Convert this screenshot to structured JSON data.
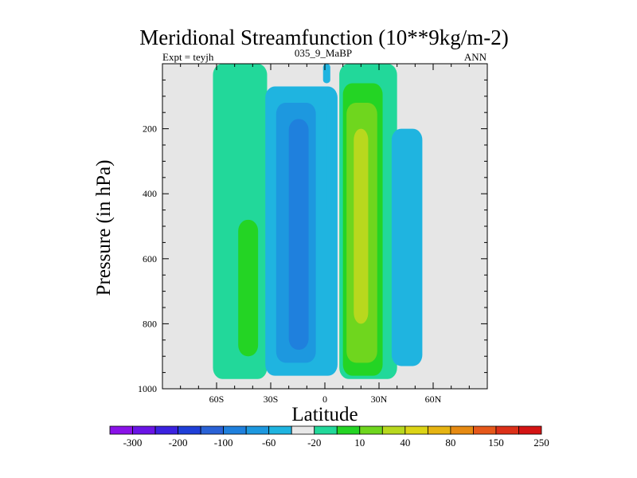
{
  "chart_data": {
    "type": "heatmap",
    "subtype": "filled-contour",
    "title": "Meridional Streamfunction (10**9kg/m-2)",
    "subtitle_left": "Expt = teyjh",
    "subtitle_center": "035_9_MaBP",
    "subtitle_right": "ANN",
    "xlabel": "Latitude",
    "ylabel": "Pressure (in hPa)",
    "xlim": [
      -90,
      90
    ],
    "ylim": [
      1000,
      0
    ],
    "x_ticks": [
      {
        "value": -60,
        "label": "60S"
      },
      {
        "value": -30,
        "label": "30S"
      },
      {
        "value": 0,
        "label": "0"
      },
      {
        "value": 30,
        "label": "30N"
      },
      {
        "value": 60,
        "label": "60N"
      }
    ],
    "y_ticks": [
      {
        "value": 200,
        "label": "200"
      },
      {
        "value": 400,
        "label": "400"
      },
      {
        "value": 600,
        "label": "600"
      },
      {
        "value": 800,
        "label": "800"
      },
      {
        "value": 1000,
        "label": "1000"
      }
    ],
    "background_color": "#e6e6e6",
    "colorbar": {
      "colors": [
        "#8a12e8",
        "#6a14e6",
        "#3b22e0",
        "#1f3fd8",
        "#2a62d6",
        "#1f80dd",
        "#1d98df",
        "#1fb4e0",
        "#e8e8e8",
        "#22d89a",
        "#24d424",
        "#6fd61e",
        "#b8d81e",
        "#dcd416",
        "#e6b412",
        "#e68a12",
        "#e6581a",
        "#dc3018",
        "#d41414"
      ],
      "labels": [
        "-300",
        "-200",
        "-100",
        "-60",
        "-20",
        "10",
        "40",
        "80",
        "150",
        "250"
      ]
    },
    "regions": [
      {
        "sign": "positive",
        "level": 10,
        "color": "#22d89a",
        "lat_range": [
          -62,
          -32
        ],
        "p_range": [
          0,
          970
        ]
      },
      {
        "sign": "positive",
        "level": 20,
        "color": "#24d424",
        "lat_range": [
          -48,
          -37
        ],
        "p_range": [
          480,
          900
        ]
      },
      {
        "sign": "negative",
        "level": -10,
        "color": "#1fb4e0",
        "lat_range": [
          -33,
          7
        ],
        "p_range": [
          70,
          960
        ]
      },
      {
        "sign": "negative",
        "level": -20,
        "color": "#1d98df",
        "lat_range": [
          -27,
          -5
        ],
        "p_range": [
          120,
          920
        ]
      },
      {
        "sign": "negative",
        "level": -40,
        "color": "#1f80dd",
        "lat_range": [
          -20,
          -9
        ],
        "p_range": [
          170,
          880
        ]
      },
      {
        "sign": "negative",
        "level": -10,
        "color": "#1fb4e0",
        "lat_range": [
          -1,
          3
        ],
        "p_range": [
          0,
          60
        ]
      },
      {
        "sign": "negative",
        "level": -10,
        "color": "#1fb4e0",
        "lat_range": [
          1,
          4
        ],
        "p_range": [
          120,
          460
        ]
      },
      {
        "sign": "positive",
        "level": 10,
        "color": "#22d89a",
        "lat_range": [
          8,
          40
        ],
        "p_range": [
          0,
          970
        ]
      },
      {
        "sign": "positive",
        "level": 20,
        "color": "#24d424",
        "lat_range": [
          10,
          32
        ],
        "p_range": [
          60,
          960
        ]
      },
      {
        "sign": "positive",
        "level": 40,
        "color": "#6fd61e",
        "lat_range": [
          12,
          29
        ],
        "p_range": [
          120,
          920
        ]
      },
      {
        "sign": "positive",
        "level": 60,
        "color": "#b8d81e",
        "lat_range": [
          16,
          24
        ],
        "p_range": [
          200,
          800
        ]
      },
      {
        "sign": "negative",
        "level": -10,
        "color": "#1fb4e0",
        "lat_range": [
          37,
          54
        ],
        "p_range": [
          200,
          930
        ]
      }
    ]
  }
}
